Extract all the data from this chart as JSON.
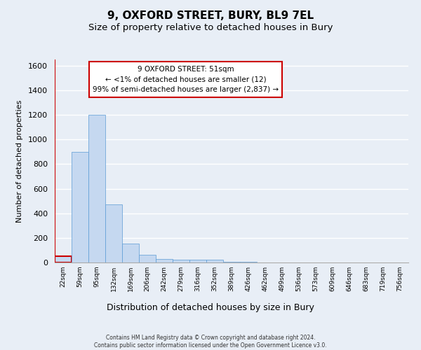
{
  "title1": "9, OXFORD STREET, BURY, BL9 7EL",
  "title2": "Size of property relative to detached houses in Bury",
  "xlabel": "Distribution of detached houses by size in Bury",
  "ylabel": "Number of detached properties",
  "footnote": "Contains HM Land Registry data © Crown copyright and database right 2024.\nContains public sector information licensed under the Open Government Licence v3.0.",
  "bin_labels": [
    "22sqm",
    "59sqm",
    "95sqm",
    "132sqm",
    "169sqm",
    "206sqm",
    "242sqm",
    "279sqm",
    "316sqm",
    "352sqm",
    "389sqm",
    "426sqm",
    "462sqm",
    "499sqm",
    "536sqm",
    "573sqm",
    "609sqm",
    "646sqm",
    "683sqm",
    "719sqm",
    "756sqm"
  ],
  "bar_values": [
    50,
    900,
    1200,
    470,
    155,
    65,
    30,
    20,
    20,
    20,
    5,
    3,
    2,
    1,
    1,
    1,
    0,
    0,
    0,
    0,
    0
  ],
  "bar_color": "#c5d8f0",
  "bar_edge_color": "#5b9bd5",
  "highlight_color": "#cc0000",
  "highlight_bar_index": 0,
  "annotation_text": "9 OXFORD STREET: 51sqm\n← <1% of detached houses are smaller (12)\n99% of semi-detached houses are larger (2,837) →",
  "ylim": [
    0,
    1650
  ],
  "yticks": [
    0,
    200,
    400,
    600,
    800,
    1000,
    1200,
    1400,
    1600
  ],
  "bg_color": "#e8eef6",
  "grid_color": "#ffffff",
  "title1_fontsize": 11,
  "title2_fontsize": 9.5
}
